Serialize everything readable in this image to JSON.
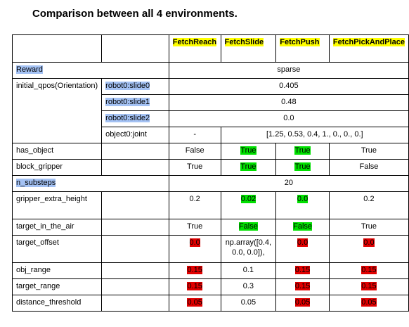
{
  "title": "Comparison between all 4 environments.",
  "columns": [
    "FetchReach",
    "FetchSlide",
    "FetchPush",
    "FetchPickAndPlace"
  ],
  "rows": {
    "reward": {
      "label": "Reward",
      "value": "sparse"
    },
    "initial_qpos": {
      "label": "initial_qpos(Orientation)",
      "slide0": {
        "label": "robot0:slide0",
        "value": "0.405"
      },
      "slide1": {
        "label": "robot0:slide1",
        "value": "0.48"
      },
      "slide2": {
        "label": "robot0:slide2",
        "value": "0.0"
      },
      "object0": {
        "label": "object0:joint",
        "reach": "-",
        "others": "[1.25, 0.53, 0.4, 1., 0., 0., 0.]"
      }
    },
    "has_object": {
      "label": "has_object",
      "values": [
        "False",
        "True",
        "True",
        "True"
      ]
    },
    "block_gripper": {
      "label": "block_gripper",
      "values": [
        "True",
        "True",
        "True",
        "False"
      ]
    },
    "n_substeps": {
      "label": "n_substeps",
      "value": "20"
    },
    "gripper_extra_height": {
      "label": "gripper_extra_height",
      "values": [
        "0.2",
        "0.02",
        "0.0",
        "0.2"
      ]
    },
    "target_in_the_air": {
      "label": "target_in_the_air",
      "values": [
        "True",
        "False",
        "False",
        "True"
      ]
    },
    "target_offset": {
      "label": "target_offset",
      "values": [
        "0.0",
        "np.array([0.4, 0.0, 0.0]),",
        "0.0",
        "0.0"
      ]
    },
    "obj_range": {
      "label": "obj_range",
      "values": [
        "0.15",
        "0.1",
        "0.15",
        "0.15"
      ]
    },
    "target_range": {
      "label": "target_range",
      "values": [
        "0.15",
        "0.3",
        "0.15",
        "0.15"
      ]
    },
    "distance_threshold": {
      "label": "distance_threshold",
      "values": [
        "0.05",
        "0.05",
        "0.05",
        "0.05"
      ]
    }
  },
  "colors": {
    "yellow_highlight": "#ffff00",
    "blue_highlight": "#a4c2f4",
    "green_highlight": "#00e000",
    "red_highlight": "#e00000"
  }
}
